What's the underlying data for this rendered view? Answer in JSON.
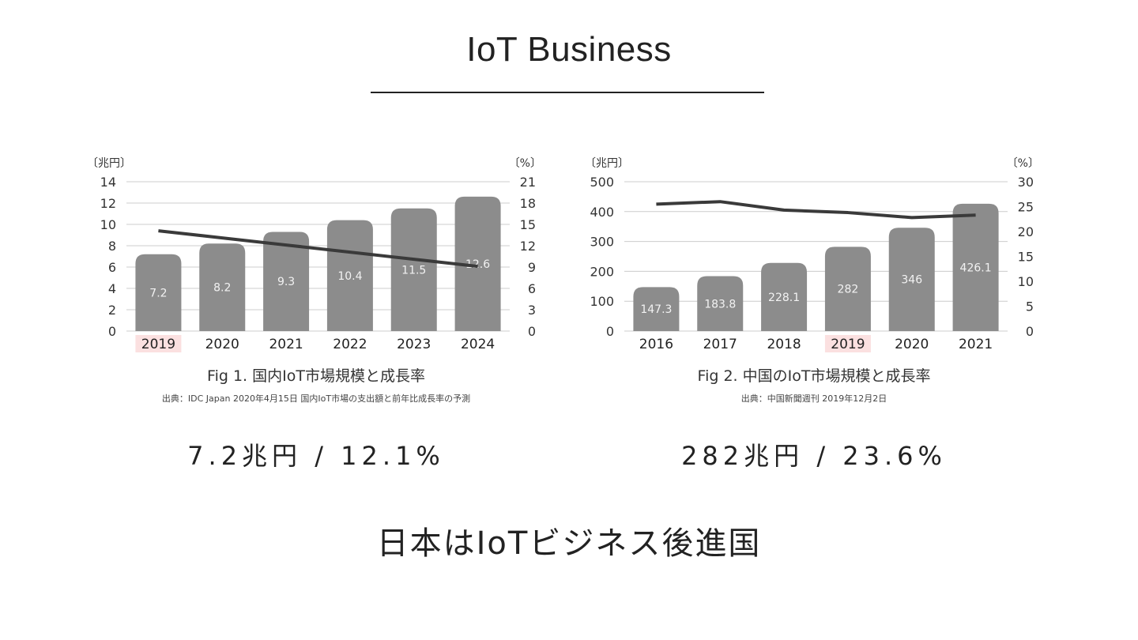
{
  "header": {
    "title": "IoT Business"
  },
  "chart_data": [
    {
      "type": "bar",
      "title": "Fig 1. 国内IoT市場規模と成長率",
      "source": "出典：IDC Japan 2020年4月15日 国内IoT市場の支出額と前年比成長率の予測",
      "left_unit": "〔兆円〕",
      "right_unit": "〔%〕",
      "categories": [
        "2019",
        "2020",
        "2021",
        "2022",
        "2023",
        "2024"
      ],
      "highlight_category": "2019",
      "ylim": [
        0,
        14
      ],
      "yticks": [
        "0",
        "2",
        "4",
        "6",
        "8",
        "10",
        "12",
        "14"
      ],
      "y2lim": [
        0,
        21
      ],
      "y2ticks": [
        "0",
        "3",
        "6",
        "9",
        "12",
        "15",
        "18",
        "21"
      ],
      "series": [
        {
          "name": "市場規模",
          "type": "bar",
          "axis": "left",
          "values": [
            7.2,
            8.2,
            9.3,
            10.4,
            11.5,
            12.6
          ],
          "labels": [
            "7.2",
            "8.2",
            "9.3",
            "10.4",
            "11.5",
            "12.6"
          ]
        },
        {
          "name": "成長率",
          "type": "line",
          "axis": "right",
          "values": [
            14.1,
            13.1,
            12.1,
            11.1,
            10.1,
            9.1
          ]
        }
      ],
      "grid": true
    },
    {
      "type": "bar",
      "title": "Fig 2. 中国のIoT市場規模と成長率",
      "source": "出典：中国新聞週刊 2019年12月2日",
      "left_unit": "〔兆円〕",
      "right_unit": "〔%〕",
      "categories": [
        "2016",
        "2017",
        "2018",
        "2019",
        "2020",
        "2021"
      ],
      "highlight_category": "2019",
      "ylim": [
        0,
        500
      ],
      "yticks": [
        "0",
        "100",
        "200",
        "300",
        "400",
        "500"
      ],
      "y2lim": [
        0,
        30
      ],
      "y2ticks": [
        "0",
        "5",
        "10",
        "15",
        "20",
        "25",
        "30"
      ],
      "series": [
        {
          "name": "市場規模",
          "type": "bar",
          "axis": "left",
          "values": [
            147.3,
            183.8,
            228.1,
            282,
            346,
            426.1
          ],
          "labels": [
            "147.3",
            "183.8",
            "228.1",
            "282",
            "346",
            "426.1"
          ]
        },
        {
          "name": "成長率",
          "type": "line",
          "axis": "right",
          "values": [
            25.5,
            26.0,
            24.3,
            23.8,
            22.8,
            23.3
          ]
        }
      ],
      "grid": true
    }
  ],
  "stats": {
    "japan": "7.2兆円 / 12.1%",
    "china": "282兆円 / 23.6%"
  },
  "conclusion": "日本はIoTビジネス後進国",
  "colors": {
    "bar": "#8c8c8c",
    "line": "#3a3a3a",
    "highlight": "#fbe0e0",
    "grid": "#cccccc"
  }
}
